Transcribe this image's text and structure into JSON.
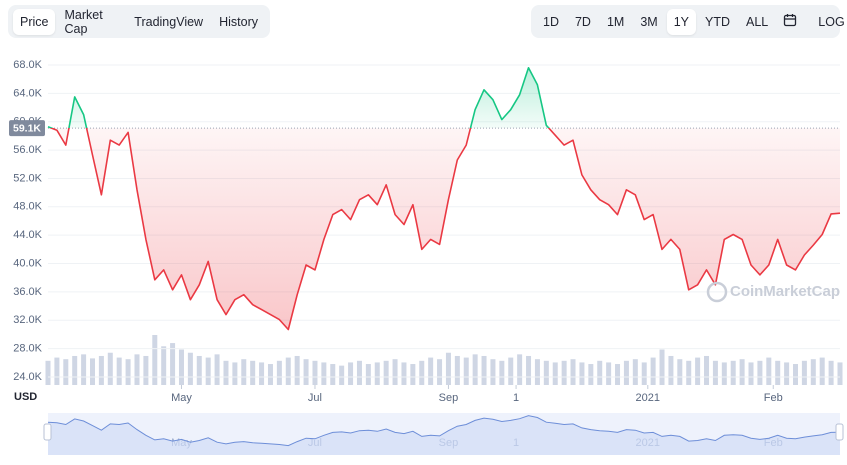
{
  "tabs": [
    "Price",
    "Market Cap",
    "TradingView",
    "History"
  ],
  "active_tab_index": 0,
  "ranges": [
    "1D",
    "7D",
    "1M",
    "3M",
    "1Y",
    "YTD",
    "ALL"
  ],
  "active_range_index": 4,
  "log_button": "LOG",
  "chart_data": {
    "type": "line",
    "currency": "USD",
    "watermark": "CoinMarketCap",
    "up_color": "#16c784",
    "down_color": "#ea3943",
    "baseline": {
      "value": 59100,
      "label": "59.1K"
    },
    "xlim": [
      0,
      89
    ],
    "xticks": [
      {
        "value": 15,
        "label": "May"
      },
      {
        "value": 30,
        "label": "Jul"
      },
      {
        "value": 45,
        "label": "Sep"
      },
      {
        "value": 52.6,
        "label": "1"
      },
      {
        "value": 67.4,
        "label": "2021"
      },
      {
        "value": 81.5,
        "label": "Feb"
      }
    ],
    "ylim": [
      22870,
      69550
    ],
    "yticks": [
      {
        "value": 24000,
        "label": "24.0K"
      },
      {
        "value": 28000,
        "label": "28.0K"
      },
      {
        "value": 32000,
        "label": "32.0K"
      },
      {
        "value": 36000,
        "label": "36.0K"
      },
      {
        "value": 40000,
        "label": "40.0K"
      },
      {
        "value": 44000,
        "label": "44.0K"
      },
      {
        "value": 48000,
        "label": "48.0K"
      },
      {
        "value": 52000,
        "label": "52.0K"
      },
      {
        "value": 56000,
        "label": "56.0K"
      },
      {
        "value": 60000,
        "label": "60.0K"
      },
      {
        "value": 64000,
        "label": "64.0K"
      },
      {
        "value": 68000,
        "label": "68.0K"
      }
    ],
    "grid": true,
    "values": [
      59300,
      58800,
      56700,
      63500,
      61000,
      55300,
      49700,
      57400,
      56700,
      58500,
      50400,
      43400,
      37700,
      39100,
      36300,
      38400,
      34900,
      37000,
      40300,
      34900,
      32800,
      34900,
      35600,
      34200,
      33500,
      32800,
      32100,
      30700,
      35600,
      39800,
      39100,
      43400,
      46900,
      47600,
      46200,
      49000,
      49700,
      48300,
      51100,
      46900,
      45500,
      48300,
      42000,
      43400,
      42700,
      49000,
      54600,
      56700,
      61700,
      64500,
      63100,
      60300,
      61700,
      63800,
      67600,
      65200,
      59500,
      58100,
      56700,
      57400,
      52500,
      50400,
      49000,
      48300,
      46900,
      50400,
      49700,
      46200,
      46900,
      42000,
      43400,
      42000,
      36300,
      37000,
      39100,
      37000,
      43400,
      44100,
      43400,
      39800,
      38400,
      39800,
      43400,
      39800,
      39100,
      41200,
      42600,
      44100,
      47000,
      47100
    ],
    "volume_color": "#cfd6e4",
    "volume": [
      30,
      34,
      32,
      36,
      38,
      33,
      36,
      40,
      34,
      32,
      38,
      36,
      62,
      48,
      52,
      44,
      40,
      36,
      34,
      38,
      30,
      28,
      32,
      30,
      28,
      26,
      30,
      34,
      36,
      32,
      30,
      28,
      26,
      24,
      28,
      30,
      26,
      28,
      30,
      32,
      28,
      26,
      30,
      34,
      32,
      40,
      36,
      34,
      38,
      36,
      32,
      30,
      34,
      38,
      36,
      32,
      30,
      28,
      30,
      32,
      28,
      26,
      30,
      28,
      26,
      30,
      32,
      28,
      34,
      44,
      36,
      32,
      30,
      34,
      36,
      30,
      28,
      30,
      32,
      28,
      30,
      34,
      30,
      28,
      26,
      30,
      32,
      34,
      30,
      28
    ]
  }
}
